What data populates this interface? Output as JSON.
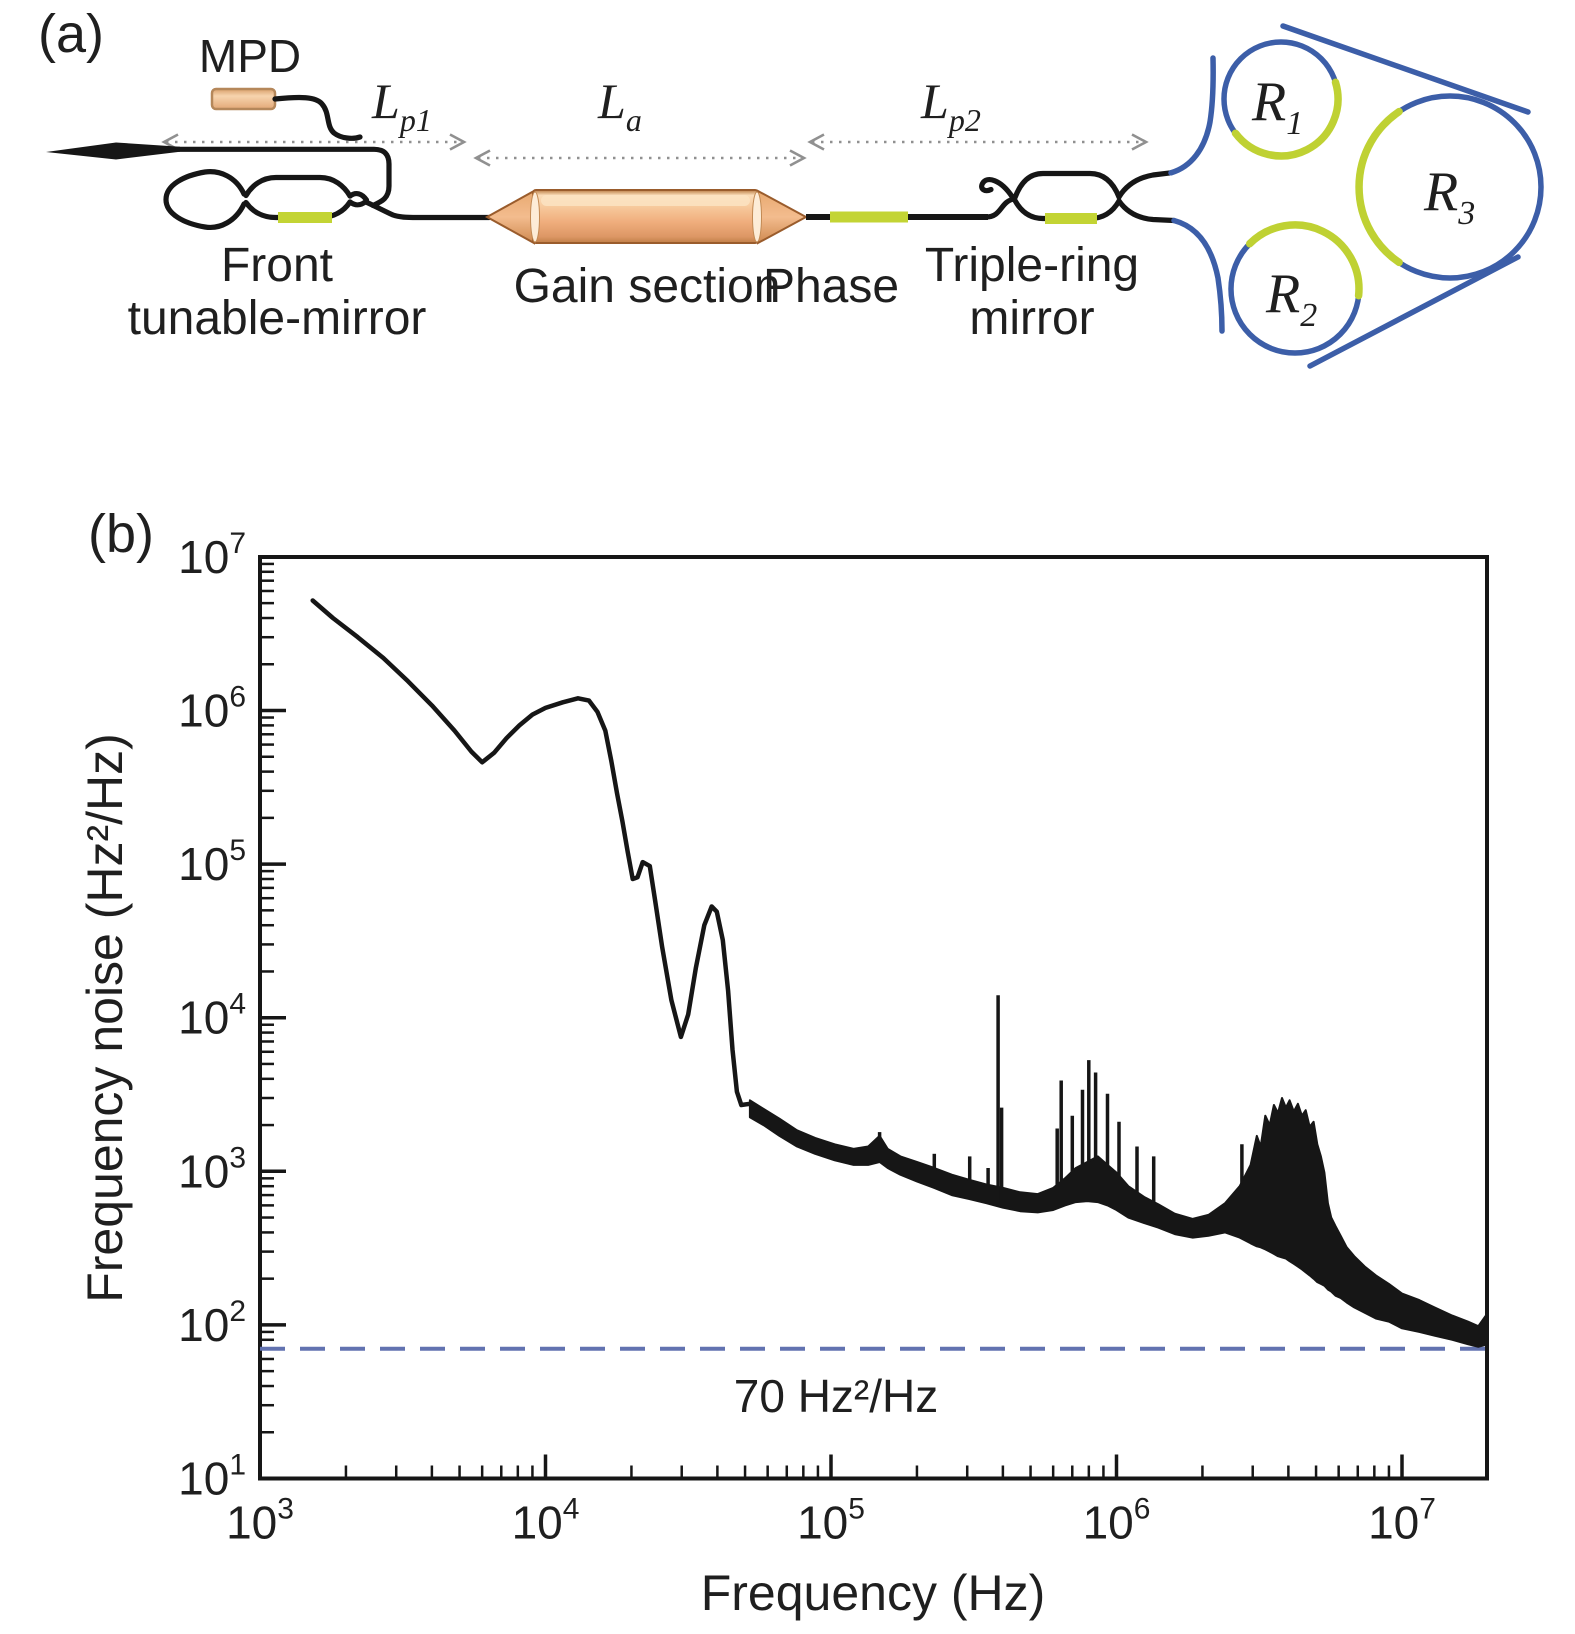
{
  "figure": {
    "panel_a": {
      "tag": "(a)",
      "labels": {
        "mpd": "MPD",
        "front_mirror_line1": "Front",
        "front_mirror_line2": "tunable-mirror",
        "gain_section": "Gain section",
        "phase": "Phase",
        "triple_ring_line1": "Triple-ring",
        "triple_ring_line2": "mirror",
        "length1_main": "L",
        "length1_sub": "p1",
        "length2_main": "L",
        "length2_sub": "a",
        "length3_main": "L",
        "length3_sub": "p2",
        "ring1_main": "R",
        "ring1_sub": "1",
        "ring2_main": "R",
        "ring2_sub": "2",
        "ring3_main": "R",
        "ring3_sub": "3"
      },
      "colors": {
        "waveguide": "#161616",
        "ring_blue": "#3c5ea8",
        "heater_green": "#c3d434",
        "gain_peach": "#f0ae7d",
        "arrow_gray": "#909090"
      }
    },
    "panel_b": {
      "tag": "(b)",
      "xlabel": "Frequency (Hz)",
      "ylabel": "Frequency noise (Hz²/Hz)",
      "annotation": "70 Hz²/Hz",
      "chart_data": {
        "type": "line",
        "title": "",
        "xlabel": "Frequency (Hz)",
        "ylabel": "Frequency noise (Hz²/Hz)",
        "x_scale": "log",
        "y_scale": "log",
        "xlim": [
          1000,
          20000000
        ],
        "ylim": [
          10,
          10000000
        ],
        "grid": false,
        "x_tick_exponents": [
          3,
          4,
          5,
          6,
          7
        ],
        "y_tick_exponents": [
          1,
          2,
          3,
          4,
          5,
          6,
          7
        ],
        "curve_color": "#161616",
        "dashed_reference_line": {
          "value": 70,
          "label": "70 Hz²/Hz",
          "color": "#6272b0"
        },
        "main_curve": [
          [
            1530,
            5200000.0
          ],
          [
            1800,
            4000000.0
          ],
          [
            2200,
            3000000.0
          ],
          [
            2700,
            2200000.0
          ],
          [
            3300,
            1550000.0
          ],
          [
            4000,
            1080000.0
          ],
          [
            4800,
            740000.0
          ],
          [
            5500,
            540000.0
          ],
          [
            6000,
            460000.0
          ],
          [
            6600,
            530000.0
          ],
          [
            7300,
            660000.0
          ],
          [
            8100,
            800000.0
          ],
          [
            9000,
            940000.0
          ],
          [
            10000,
            1040000.0
          ],
          [
            11500,
            1130000.0
          ],
          [
            13000,
            1200000.0
          ],
          [
            14200,
            1160000.0
          ],
          [
            15200,
            980000.0
          ],
          [
            16200,
            740000.0
          ],
          [
            17000,
            470000.0
          ],
          [
            17800,
            290000.0
          ],
          [
            18600,
            190000.0
          ],
          [
            19400,
            120000.0
          ],
          [
            20200,
            80000.0
          ],
          [
            21000,
            82000.0
          ],
          [
            21900,
            103000.0
          ],
          [
            23200,
            97000.0
          ],
          [
            24200,
            58000.0
          ],
          [
            25600,
            29000.0
          ],
          [
            27600,
            13000.0
          ],
          [
            29800,
            7500.0
          ],
          [
            31600,
            10500.0
          ],
          [
            33600,
            21000.0
          ],
          [
            36000,
            40000.0
          ],
          [
            38200,
            53000.0
          ],
          [
            39800,
            49000.0
          ],
          [
            41800,
            32000.0
          ],
          [
            43600,
            15000.0
          ],
          [
            45200,
            6200.0
          ],
          [
            46800,
            3300.0
          ],
          [
            48500,
            2700.0
          ],
          [
            52000,
            2750.0
          ],
          [
            54500,
            2500.0
          ]
        ],
        "noise_band": [
          [
            52000,
            2900.0,
            2250.0
          ],
          [
            58000,
            2550.0,
            2000.0
          ],
          [
            66000,
            2200.0,
            1700.0
          ],
          [
            76000,
            1850.0,
            1450.0
          ],
          [
            88000,
            1650.0,
            1300.0
          ],
          [
            103000,
            1500.0,
            1180.0
          ],
          [
            120000,
            1400.0,
            1100.0
          ],
          [
            135000,
            1450.0,
            1100.0
          ],
          [
            148000,
            1700.0,
            1150.0
          ],
          [
            158000,
            1400.0,
            1050.0
          ],
          [
            175000,
            1250.0,
            950.0
          ],
          [
            200000,
            1150.0,
            860.0
          ],
          [
            230000,
            1050.0,
            780.0
          ],
          [
            265000,
            950.0,
            700.0
          ],
          [
            305000,
            880.0,
            660.0
          ],
          [
            350000,
            820.0,
            620.0
          ],
          [
            400000,
            780.0,
            580.0
          ],
          [
            460000,
            730.0,
            550.0
          ],
          [
            530000,
            710.0,
            540.0
          ],
          [
            600000,
            780.0,
            560.0
          ],
          [
            660000,
            900.0,
            600.0
          ],
          [
            720000,
            1050.0,
            630.0
          ],
          [
            790000,
            1150.0,
            640.0
          ],
          [
            860000,
            1250.0,
            630.0
          ],
          [
            930000,
            1100.0,
            600.0
          ],
          [
            1000000.0,
            980.0,
            560.0
          ],
          [
            1100000.0,
            800.0,
            500.0
          ],
          [
            1250000.0,
            680.0,
            460.0
          ],
          [
            1400000.0,
            610.0,
            430.0
          ],
          [
            1600000.0,
            530.0,
            390.0
          ],
          [
            1850000.0,
            490.0,
            370.0
          ],
          [
            2100000.0,
            520.0,
            380.0
          ],
          [
            2400000.0,
            620.0,
            400.0
          ],
          [
            2700000.0,
            800.0,
            370.0
          ],
          [
            2950000.0,
            1100.0,
            340.0
          ],
          [
            3100000.0,
            1700.0,
            325.0
          ],
          [
            3200000.0,
            1450.0,
            320.0
          ],
          [
            3320000.0,
            2300.0,
            310.0
          ],
          [
            3440000.0,
            2000.0,
            300.0
          ],
          [
            3560000.0,
            2700.0,
            290.0
          ],
          [
            3680000.0,
            2400.0,
            280.0
          ],
          [
            3800000.0,
            3000.0,
            275.0
          ],
          [
            3920000.0,
            2600.0,
            270.0
          ],
          [
            4040000.0,
            2900.0,
            260.0
          ],
          [
            4180000.0,
            2450.0,
            250.0
          ],
          [
            4320000.0,
            2750.0,
            240.0
          ],
          [
            4460000.0,
            2300.0,
            230.0
          ],
          [
            4600000.0,
            2500.0,
            220.0
          ],
          [
            4750000.0,
            1950.0,
            210.0
          ],
          [
            4900000.0,
            2100.0,
            200.0
          ],
          [
            5050000.0,
            1500.0,
            190.0
          ],
          [
            5200000.0,
            1250.0,
            185.0
          ],
          [
            5350000.0,
            980.0,
            180.0
          ],
          [
            5500000.0,
            620.0,
            170.0
          ],
          [
            5650000.0,
            500.0,
            165.0
          ],
          [
            5850000.0,
            440.0,
            155.0
          ],
          [
            6100000.0,
            380.0,
            150.0
          ],
          [
            6400000.0,
            320.0,
            140.0
          ],
          [
            6800000.0,
            280.0,
            130.0
          ],
          [
            7400000.0,
            240.0,
            120.0
          ],
          [
            8100000.0,
            210.0,
            110.0
          ],
          [
            9000000.0,
            185.0,
            105.0
          ],
          [
            10000000.0,
            160.0,
            95.0
          ],
          [
            11500000.0,
            145.0,
            90.0
          ],
          [
            13000000.0,
            130.0,
            85.0
          ],
          [
            15000000.0,
            115.0,
            80.0
          ],
          [
            17000000.0,
            105.0,
            75.0
          ],
          [
            18500000.0,
            98.0,
            72.0
          ],
          [
            20000000.0,
            120.0,
            75.0
          ]
        ],
        "spikes": [
          [
            148000,
            1800.0,
            1300.0
          ],
          [
            230000,
            1300.0,
            850.0
          ],
          [
            306000,
            1250.0,
            720.0
          ],
          [
            355000,
            1050.0,
            650.0
          ],
          [
            385000,
            14000.0,
            620.0
          ],
          [
            396000,
            2600.0,
            620.0
          ],
          [
            620000,
            1900.0,
            600.0
          ],
          [
            640000,
            3900.0,
            620.0
          ],
          [
            700000,
            2300.0,
            640.0
          ],
          [
            760000,
            3400.0,
            650.0
          ],
          [
            800000,
            5300.0,
            650.0
          ],
          [
            845000,
            4400.0,
            640.0
          ],
          [
            930000,
            3200.0,
            610.0
          ],
          [
            1020000.0,
            2100.0,
            570.0
          ],
          [
            1180000.0,
            1450.0,
            510.0
          ],
          [
            1350000.0,
            1250.0,
            450.0
          ],
          [
            2750000.0,
            1500.0,
            480.0
          ]
        ]
      }
    }
  }
}
